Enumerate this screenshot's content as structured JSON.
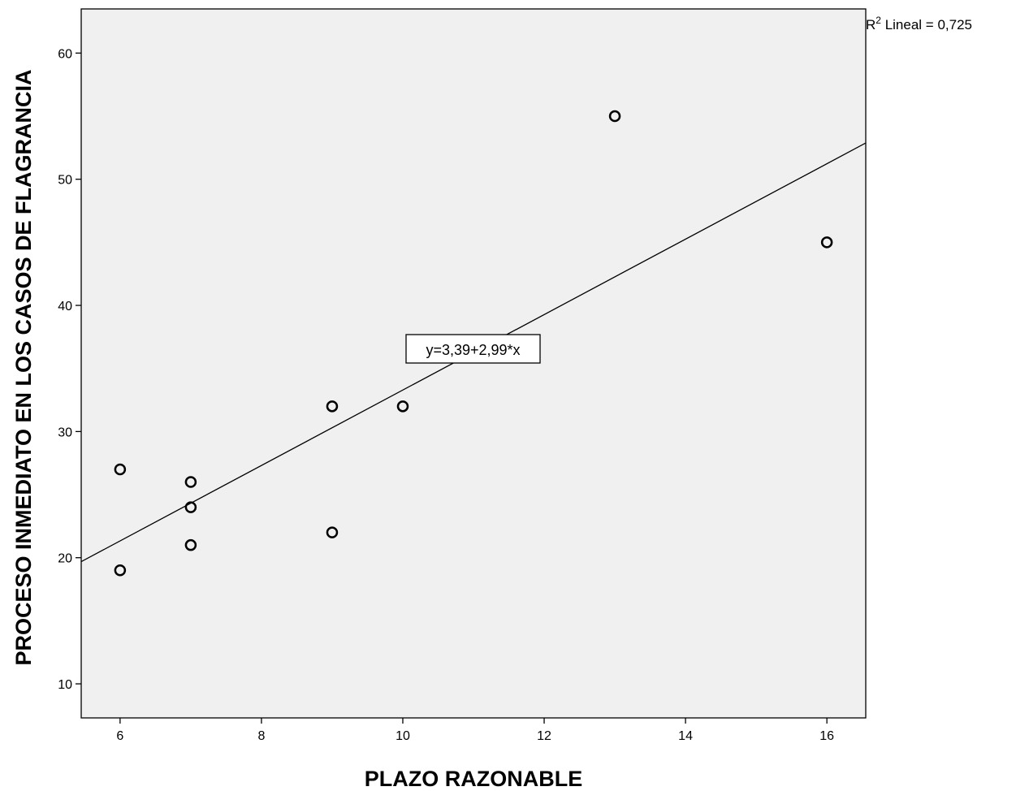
{
  "chart_data": {
    "type": "scatter",
    "title": "",
    "xlabel": "PLAZO RAZONABLE",
    "ylabel": "PROCESO INMEDIATO EN LOS CASOS DE FLAGRANCIA",
    "xlim": [
      5.45,
      16.55
    ],
    "ylim": [
      7.3,
      63.5
    ],
    "x_ticks": [
      6,
      8,
      10,
      12,
      14,
      16
    ],
    "y_ticks": [
      10,
      20,
      30,
      40,
      50,
      60
    ],
    "grid": false,
    "plot_background": "#f0f0f0",
    "marker": "hollow-circle",
    "points": [
      {
        "x": 6,
        "y": 27
      },
      {
        "x": 6,
        "y": 19
      },
      {
        "x": 7,
        "y": 26
      },
      {
        "x": 7,
        "y": 24
      },
      {
        "x": 7,
        "y": 21
      },
      {
        "x": 9,
        "y": 32
      },
      {
        "x": 9,
        "y": 22
      },
      {
        "x": 10,
        "y": 32
      },
      {
        "x": 13,
        "y": 55
      },
      {
        "x": 16,
        "y": 45
      }
    ],
    "fit_line": {
      "intercept": 3.39,
      "slope": 2.99
    },
    "fit_equation_label": "y=3,39+2,99*x",
    "r2_label": {
      "prefix": "R",
      "sup": "2",
      "text": " Lineal = 0,725"
    }
  }
}
